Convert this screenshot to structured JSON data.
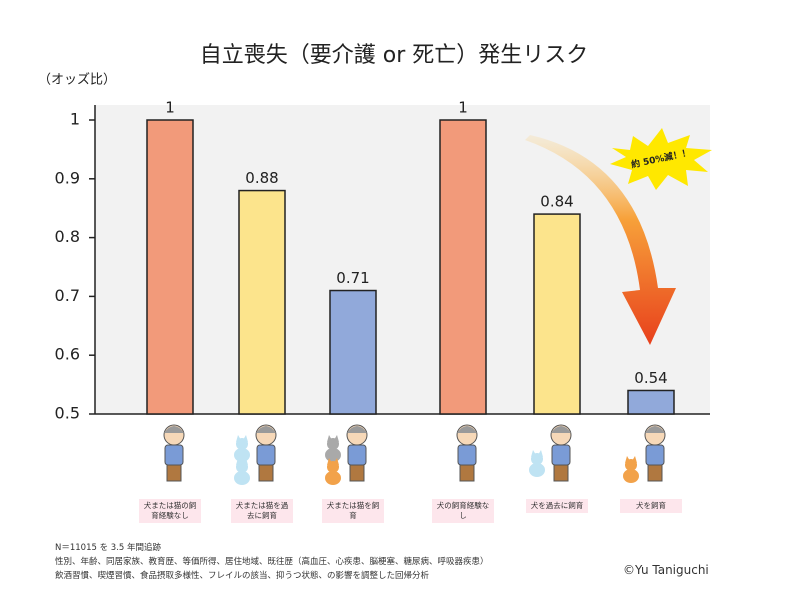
{
  "chart_data": {
    "type": "bar",
    "title": "自立喪失（要介護 or 死亡）発生リスク",
    "y_label": "（オッズ比）",
    "categories": [
      "犬または猫の飼育経験なし",
      "犬または猫を過去に飼育",
      "犬または猫を飼育",
      "犬の飼育経験なし",
      "犬を過去に飼育",
      "犬を飼育"
    ],
    "values": [
      1,
      0.88,
      0.71,
      1,
      0.84,
      0.54
    ],
    "colors": [
      "#f29a7a",
      "#fce48c",
      "#91a9da",
      "#f29a7a",
      "#fce48c",
      "#91a9da"
    ],
    "ylim": [
      0.5,
      1
    ],
    "yticks": [
      0.5,
      0.6,
      0.7,
      0.8,
      0.9,
      1
    ],
    "annotation": "約 50%減！！"
  },
  "footnotes": [
    "N＝11015 を 3.5 年間追跡",
    "性別、年齢、同居家族、教育歴、等価所得、居住地域、既往歴（高血圧、心疾患、脳梗塞、糖尿病、呼吸器疾患）",
    "飲酒習慣、喫煙習慣、食品摂取多様性、フレイルの該当、抑うつ状態、の影響を調整した回帰分析"
  ],
  "credit": "©Yu Taniguchi"
}
